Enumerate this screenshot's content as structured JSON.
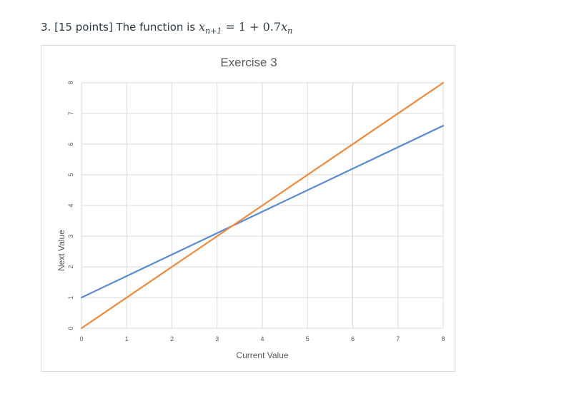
{
  "question": {
    "prefix": "3. [15 points] The function is ",
    "math_lhs": "x",
    "math_lhs_sub": "n+1",
    "math_eq": " = 1 + 0.7",
    "math_rhs": "x",
    "math_rhs_sub": "n"
  },
  "chart_data": {
    "type": "line",
    "title": "Exercise 3",
    "xlabel": "Current Value",
    "ylabel": "Next Value",
    "xlim": [
      0,
      8
    ],
    "ylim": [
      0,
      8
    ],
    "x_ticks": [
      "0",
      "1",
      "2",
      "3",
      "4",
      "5",
      "6",
      "7",
      "8"
    ],
    "y_ticks": [
      "0",
      "1",
      "2",
      "3",
      "4",
      "5",
      "6",
      "7",
      "8"
    ],
    "grid": true,
    "legend": "none",
    "series": [
      {
        "color": "#5b8bd5",
        "x": [
          0,
          8
        ],
        "y": [
          1,
          6.6
        ]
      },
      {
        "color": "#ed8b3f",
        "x": [
          0,
          8
        ],
        "y": [
          0,
          8
        ]
      }
    ]
  }
}
